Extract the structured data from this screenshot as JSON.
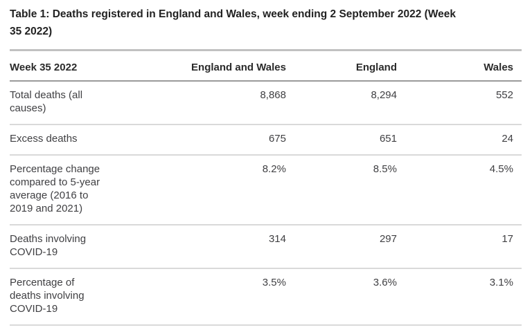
{
  "table": {
    "title": "Table 1: Deaths registered in England and Wales, week ending 2 September 2022 (Week\n35 2022)",
    "columns": [
      "Week 35 2022",
      "England and Wales",
      "England",
      "Wales"
    ],
    "rows": [
      {
        "label": "Total deaths (all\ncauses)",
        "values": [
          "8,868",
          "8,294",
          "552"
        ]
      },
      {
        "label": "Excess deaths",
        "values": [
          "675",
          "651",
          "24"
        ]
      },
      {
        "label": "Percentage change\ncompared to 5-year\naverage (2016 to\n2019 and 2021)",
        "values": [
          "8.2%",
          "8.5%",
          "4.5%"
        ]
      },
      {
        "label": "Deaths involving\nCOVID-19",
        "values": [
          "314",
          "297",
          "17"
        ]
      },
      {
        "label": "Percentage of\ndeaths involving\nCOVID-19",
        "values": [
          "3.5%",
          "3.6%",
          "3.1%"
        ]
      }
    ],
    "colors": {
      "title_text": "#222222",
      "body_text": "#3f3f42",
      "rule_heavy_top": "#c1c1c1",
      "rule_header_bottom": "#9a9a9a",
      "rule_row_separator": "#d9d9d9"
    }
  }
}
